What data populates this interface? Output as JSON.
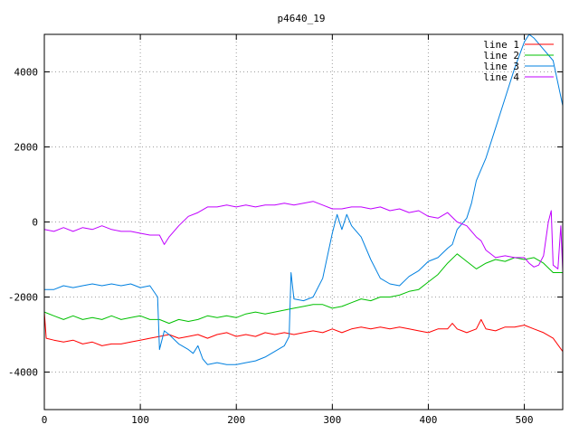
{
  "chart_data": {
    "type": "line",
    "title": "p4640_19",
    "xlabel": "",
    "ylabel": "",
    "xlim": [
      0,
      540
    ],
    "ylim": [
      -5000,
      5000
    ],
    "x_ticks": [
      0,
      100,
      200,
      300,
      400,
      500
    ],
    "y_ticks": [
      -4000,
      -2000,
      0,
      2000,
      4000
    ],
    "x_tick_labels": [
      "0",
      "100",
      "200",
      "300",
      "400",
      "500"
    ],
    "y_tick_labels": [
      "-4000",
      "-2000",
      "0",
      "2000",
      "4000"
    ],
    "grid": true,
    "legend_position": "top-right",
    "series": [
      {
        "name": "line 1",
        "color": "#ff0000",
        "points": [
          [
            0,
            -2400
          ],
          [
            2,
            -3100
          ],
          [
            10,
            -3150
          ],
          [
            20,
            -3200
          ],
          [
            30,
            -3150
          ],
          [
            40,
            -3250
          ],
          [
            50,
            -3200
          ],
          [
            60,
            -3300
          ],
          [
            70,
            -3250
          ],
          [
            80,
            -3250
          ],
          [
            90,
            -3200
          ],
          [
            100,
            -3150
          ],
          [
            110,
            -3100
          ],
          [
            120,
            -3050
          ],
          [
            130,
            -3000
          ],
          [
            140,
            -3100
          ],
          [
            150,
            -3050
          ],
          [
            160,
            -3000
          ],
          [
            170,
            -3100
          ],
          [
            180,
            -3000
          ],
          [
            190,
            -2950
          ],
          [
            200,
            -3050
          ],
          [
            210,
            -3000
          ],
          [
            220,
            -3050
          ],
          [
            230,
            -2950
          ],
          [
            240,
            -3000
          ],
          [
            250,
            -2950
          ],
          [
            260,
            -3000
          ],
          [
            270,
            -2950
          ],
          [
            280,
            -2900
          ],
          [
            290,
            -2950
          ],
          [
            300,
            -2850
          ],
          [
            310,
            -2950
          ],
          [
            320,
            -2850
          ],
          [
            330,
            -2800
          ],
          [
            340,
            -2850
          ],
          [
            350,
            -2800
          ],
          [
            360,
            -2850
          ],
          [
            370,
            -2800
          ],
          [
            380,
            -2850
          ],
          [
            390,
            -2900
          ],
          [
            400,
            -2950
          ],
          [
            410,
            -2850
          ],
          [
            420,
            -2850
          ],
          [
            425,
            -2700
          ],
          [
            430,
            -2850
          ],
          [
            440,
            -2950
          ],
          [
            450,
            -2850
          ],
          [
            455,
            -2600
          ],
          [
            460,
            -2850
          ],
          [
            470,
            -2900
          ],
          [
            480,
            -2800
          ],
          [
            490,
            -2800
          ],
          [
            500,
            -2750
          ],
          [
            510,
            -2850
          ],
          [
            520,
            -2950
          ],
          [
            530,
            -3100
          ],
          [
            540,
            -3450
          ]
        ]
      },
      {
        "name": "line 2",
        "color": "#00c000",
        "points": [
          [
            0,
            -2400
          ],
          [
            10,
            -2500
          ],
          [
            20,
            -2600
          ],
          [
            30,
            -2500
          ],
          [
            40,
            -2600
          ],
          [
            50,
            -2550
          ],
          [
            60,
            -2600
          ],
          [
            70,
            -2500
          ],
          [
            80,
            -2600
          ],
          [
            90,
            -2550
          ],
          [
            100,
            -2500
          ],
          [
            110,
            -2600
          ],
          [
            120,
            -2600
          ],
          [
            130,
            -2700
          ],
          [
            140,
            -2600
          ],
          [
            150,
            -2650
          ],
          [
            160,
            -2600
          ],
          [
            170,
            -2500
          ],
          [
            180,
            -2550
          ],
          [
            190,
            -2500
          ],
          [
            200,
            -2550
          ],
          [
            210,
            -2450
          ],
          [
            220,
            -2400
          ],
          [
            230,
            -2450
          ],
          [
            240,
            -2400
          ],
          [
            250,
            -2350
          ],
          [
            260,
            -2300
          ],
          [
            270,
            -2250
          ],
          [
            280,
            -2200
          ],
          [
            290,
            -2200
          ],
          [
            300,
            -2300
          ],
          [
            310,
            -2250
          ],
          [
            320,
            -2150
          ],
          [
            330,
            -2050
          ],
          [
            340,
            -2100
          ],
          [
            350,
            -2000
          ],
          [
            360,
            -2000
          ],
          [
            370,
            -1950
          ],
          [
            380,
            -1850
          ],
          [
            390,
            -1800
          ],
          [
            400,
            -1600
          ],
          [
            410,
            -1400
          ],
          [
            420,
            -1100
          ],
          [
            430,
            -850
          ],
          [
            440,
            -1050
          ],
          [
            450,
            -1250
          ],
          [
            460,
            -1100
          ],
          [
            470,
            -1000
          ],
          [
            480,
            -1050
          ],
          [
            490,
            -950
          ],
          [
            500,
            -1000
          ],
          [
            510,
            -950
          ],
          [
            520,
            -1100
          ],
          [
            530,
            -1350
          ],
          [
            540,
            -1350
          ]
        ]
      },
      {
        "name": "line 3",
        "color": "#0080e0",
        "points": [
          [
            0,
            -1800
          ],
          [
            10,
            -1800
          ],
          [
            20,
            -1700
          ],
          [
            30,
            -1750
          ],
          [
            40,
            -1700
          ],
          [
            50,
            -1650
          ],
          [
            60,
            -1700
          ],
          [
            70,
            -1650
          ],
          [
            80,
            -1700
          ],
          [
            90,
            -1650
          ],
          [
            100,
            -1750
          ],
          [
            110,
            -1700
          ],
          [
            118,
            -2000
          ],
          [
            120,
            -3400
          ],
          [
            125,
            -2900
          ],
          [
            130,
            -3000
          ],
          [
            140,
            -3250
          ],
          [
            150,
            -3400
          ],
          [
            155,
            -3500
          ],
          [
            160,
            -3300
          ],
          [
            165,
            -3650
          ],
          [
            170,
            -3800
          ],
          [
            180,
            -3750
          ],
          [
            190,
            -3800
          ],
          [
            200,
            -3800
          ],
          [
            210,
            -3750
          ],
          [
            220,
            -3700
          ],
          [
            230,
            -3600
          ],
          [
            240,
            -3450
          ],
          [
            250,
            -3300
          ],
          [
            255,
            -3050
          ],
          [
            257,
            -1350
          ],
          [
            260,
            -2050
          ],
          [
            270,
            -2100
          ],
          [
            280,
            -2000
          ],
          [
            290,
            -1500
          ],
          [
            300,
            -300
          ],
          [
            305,
            200
          ],
          [
            310,
            -200
          ],
          [
            315,
            200
          ],
          [
            320,
            -100
          ],
          [
            330,
            -400
          ],
          [
            340,
            -1000
          ],
          [
            350,
            -1500
          ],
          [
            360,
            -1650
          ],
          [
            370,
            -1700
          ],
          [
            380,
            -1450
          ],
          [
            390,
            -1300
          ],
          [
            400,
            -1050
          ],
          [
            410,
            -950
          ],
          [
            420,
            -700
          ],
          [
            425,
            -600
          ],
          [
            430,
            -200
          ],
          [
            440,
            100
          ],
          [
            445,
            500
          ],
          [
            450,
            1100
          ],
          [
            460,
            1700
          ],
          [
            470,
            2500
          ],
          [
            480,
            3300
          ],
          [
            490,
            4100
          ],
          [
            500,
            4800
          ],
          [
            505,
            5000
          ],
          [
            510,
            4900
          ],
          [
            520,
            4600
          ],
          [
            530,
            4300
          ],
          [
            540,
            3100
          ]
        ]
      },
      {
        "name": "line 4",
        "color": "#c000ff",
        "points": [
          [
            0,
            -200
          ],
          [
            10,
            -250
          ],
          [
            20,
            -150
          ],
          [
            30,
            -250
          ],
          [
            40,
            -150
          ],
          [
            50,
            -200
          ],
          [
            60,
            -100
          ],
          [
            70,
            -200
          ],
          [
            80,
            -250
          ],
          [
            90,
            -250
          ],
          [
            100,
            -300
          ],
          [
            110,
            -350
          ],
          [
            120,
            -350
          ],
          [
            125,
            -600
          ],
          [
            130,
            -400
          ],
          [
            140,
            -100
          ],
          [
            150,
            150
          ],
          [
            160,
            250
          ],
          [
            170,
            400
          ],
          [
            180,
            400
          ],
          [
            190,
            450
          ],
          [
            200,
            400
          ],
          [
            210,
            450
          ],
          [
            220,
            400
          ],
          [
            230,
            450
          ],
          [
            240,
            450
          ],
          [
            250,
            500
          ],
          [
            260,
            450
          ],
          [
            270,
            500
          ],
          [
            280,
            550
          ],
          [
            290,
            450
          ],
          [
            300,
            350
          ],
          [
            310,
            350
          ],
          [
            320,
            400
          ],
          [
            330,
            400
          ],
          [
            340,
            350
          ],
          [
            350,
            400
          ],
          [
            360,
            300
          ],
          [
            370,
            350
          ],
          [
            380,
            250
          ],
          [
            390,
            300
          ],
          [
            400,
            150
          ],
          [
            410,
            100
          ],
          [
            420,
            250
          ],
          [
            430,
            0
          ],
          [
            440,
            -100
          ],
          [
            450,
            -400
          ],
          [
            455,
            -500
          ],
          [
            460,
            -750
          ],
          [
            470,
            -950
          ],
          [
            480,
            -900
          ],
          [
            490,
            -950
          ],
          [
            500,
            -950
          ],
          [
            505,
            -1100
          ],
          [
            510,
            -1200
          ],
          [
            515,
            -1150
          ],
          [
            520,
            -900
          ],
          [
            525,
            0
          ],
          [
            528,
            300
          ],
          [
            530,
            -1150
          ],
          [
            535,
            -1250
          ],
          [
            538,
            -100
          ],
          [
            540,
            -1300
          ]
        ]
      }
    ]
  }
}
